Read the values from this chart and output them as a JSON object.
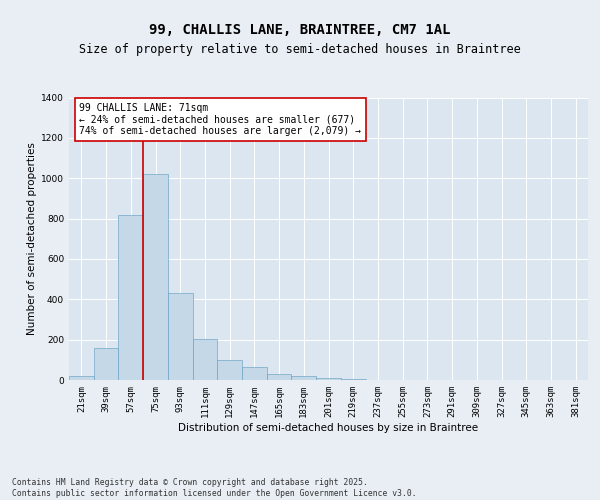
{
  "title1": "99, CHALLIS LANE, BRAINTREE, CM7 1AL",
  "title2": "Size of property relative to semi-detached houses in Braintree",
  "xlabel": "Distribution of semi-detached houses by size in Braintree",
  "ylabel": "Number of semi-detached properties",
  "bins": [
    "21sqm",
    "39sqm",
    "57sqm",
    "75sqm",
    "93sqm",
    "111sqm",
    "129sqm",
    "147sqm",
    "165sqm",
    "183sqm",
    "201sqm",
    "219sqm",
    "237sqm",
    "255sqm",
    "273sqm",
    "291sqm",
    "309sqm",
    "327sqm",
    "345sqm",
    "363sqm",
    "381sqm"
  ],
  "values": [
    20,
    160,
    820,
    1020,
    430,
    205,
    100,
    65,
    30,
    20,
    10,
    5,
    2,
    1,
    0,
    0,
    0,
    0,
    0,
    0,
    0
  ],
  "bar_color": "#c5d8e8",
  "bar_edge_color": "#5a9abf",
  "vline_x_index": 2.5,
  "vline_color": "#cc0000",
  "annotation_text": "99 CHALLIS LANE: 71sqm\n← 24% of semi-detached houses are smaller (677)\n74% of semi-detached houses are larger (2,079) →",
  "annotation_box_color": "#ffffff",
  "annotation_box_edge": "#cc0000",
  "ylim": [
    0,
    1400
  ],
  "yticks": [
    0,
    200,
    400,
    600,
    800,
    1000,
    1200,
    1400
  ],
  "background_color": "#dce6f0",
  "fig_background_color": "#e8eef4",
  "grid_color": "#ffffff",
  "footer_text": "Contains HM Land Registry data © Crown copyright and database right 2025.\nContains public sector information licensed under the Open Government Licence v3.0.",
  "title_fontsize": 10,
  "subtitle_fontsize": 8.5,
  "tick_fontsize": 6.5,
  "label_fontsize": 7.5,
  "annotation_fontsize": 7,
  "footer_fontsize": 5.8
}
